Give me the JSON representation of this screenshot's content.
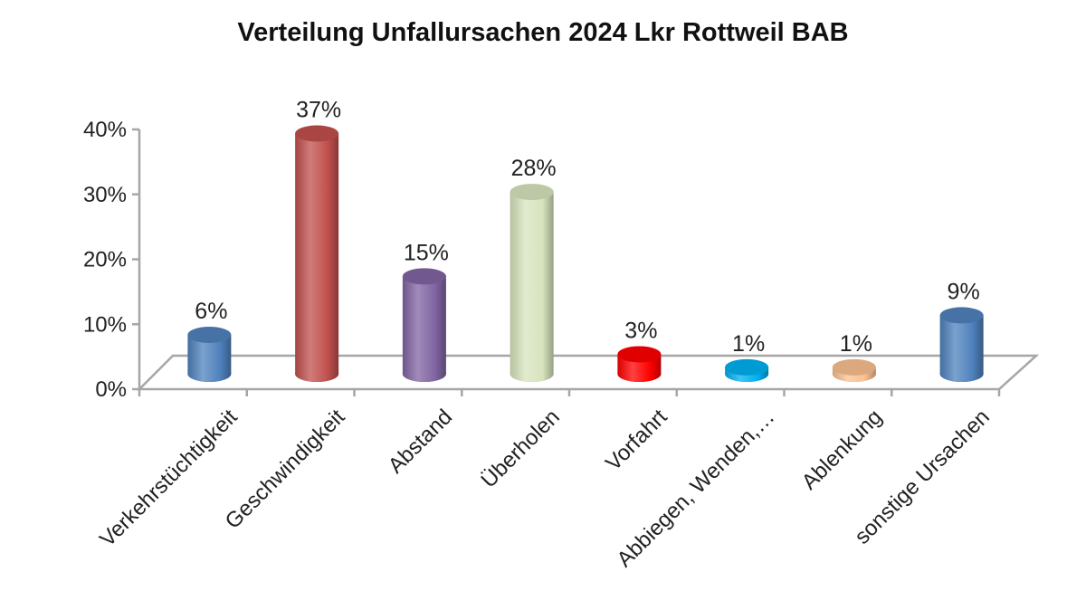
{
  "chart_data": {
    "type": "bar",
    "title": "Verteilung Unfallursachen 2024 Lkr Rottweil BAB",
    "categories": [
      "Verkehrstüchtigkeit",
      "Geschwindigkeit",
      "Abstand",
      "Überholen",
      "Vorfahrt",
      "Abbiegen, Wenden,…",
      "Ablenkung",
      "sonstige Ursachen"
    ],
    "values": [
      6,
      37,
      15,
      28,
      3,
      1,
      1,
      9
    ],
    "data_labels": [
      "6%",
      "37%",
      "15%",
      "28%",
      "3%",
      "1%",
      "1%",
      "9%"
    ],
    "colors": [
      "#4f81bd",
      "#c0504d",
      "#8064a2",
      "#d7e4bd",
      "#ff0000",
      "#00b0f0",
      "#fac090",
      "#4f81bd"
    ],
    "ylim": [
      0,
      40
    ],
    "yticks": [
      "0%",
      "10%",
      "20%",
      "30%",
      "40%"
    ],
    "grid": false,
    "legend": "none"
  }
}
